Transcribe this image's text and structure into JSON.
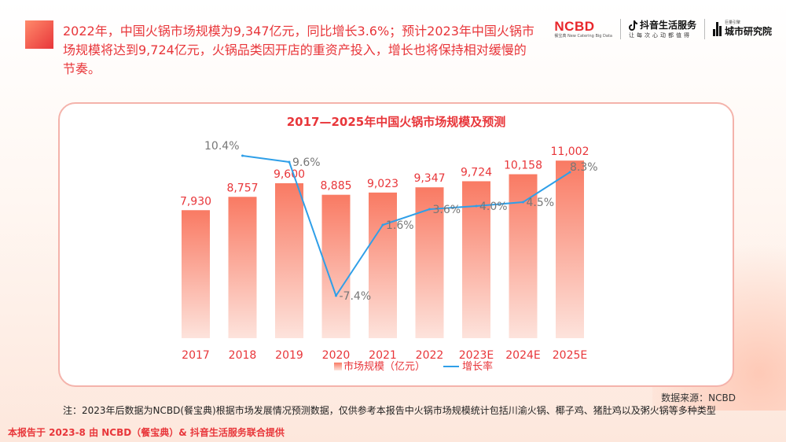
{
  "header": {
    "summary": "2022年，中国火锅市场规模为9,347亿元，同比增长3.6%；预计2023年中国火锅市场规模将达到9,724亿元，火锅品类因开店的重资产投入，增长也将保持相对缓慢的节奏。"
  },
  "logos": {
    "ncbd_main": "NCBD",
    "ncbd_sub": "餐宝典  New Catering Big Data",
    "douyin_main": "抖音生活服务",
    "douyin_sub": "让每次心动都值得",
    "city_pre": "巨量引擎",
    "city_main": "城市研究院"
  },
  "chart_data": {
    "type": "bar",
    "title": "2017—2025年中国火锅市场规模及预测",
    "categories": [
      "2017",
      "2018",
      "2019",
      "2020",
      "2021",
      "2022",
      "2023E",
      "2024E",
      "2025E"
    ],
    "series": [
      {
        "name": "市场规模（亿元）",
        "type": "bar",
        "values": [
          7930,
          8757,
          9600,
          8885,
          9023,
          9347,
          9724,
          10158,
          11002
        ],
        "labels": [
          "7,930",
          "8,757",
          "9,600",
          "8,885",
          "9,023",
          "9,347",
          "9,724",
          "10,158",
          "11,002"
        ]
      },
      {
        "name": "增长率",
        "type": "line",
        "values": [
          null,
          10.4,
          9.6,
          -7.4,
          1.6,
          3.6,
          4.0,
          4.5,
          8.3
        ],
        "labels": [
          "",
          "10.4%",
          "9.6%",
          "-7.4%",
          "1.6%",
          "3.6%",
          "4.0%",
          "4.5%",
          "8.3%"
        ]
      }
    ],
    "legend": [
      "市场规模（亿元）",
      "增长率"
    ],
    "legend_position": "bottom",
    "ylim_bar": [
      0,
      11500
    ],
    "ylim_line": [
      -10,
      12
    ],
    "colors": {
      "bar_top": "#f97a63",
      "bar_bottom": "#fde3dc",
      "line": "#2f9fe8",
      "bar_label": "#e8363a",
      "line_label": "#777777",
      "axis_label": "#e8363a"
    }
  },
  "source": "数据来源：NCBD",
  "footnote": "注：2023年后数据为NCBD(餐宝典)根据市场发展情况预测数据，仅供参考本报告中火锅市场规模统计包括川渝火锅、椰子鸡、猪肚鸡以及粥火锅等多种类型",
  "footer": "本报告于 2023-8 由 NCBD（餐宝典）& 抖音生活服务联合提供"
}
